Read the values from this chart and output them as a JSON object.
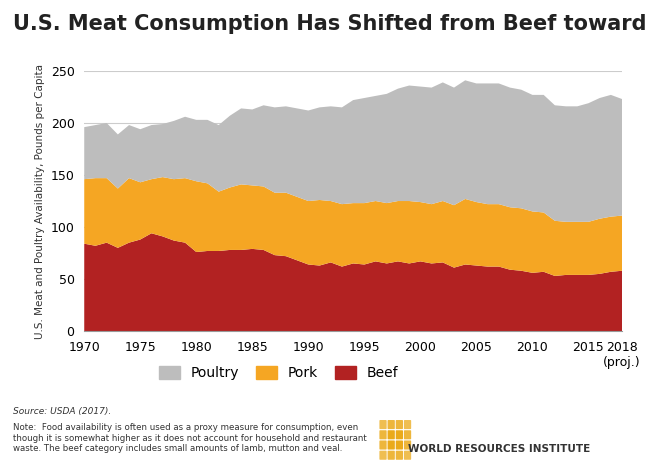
{
  "title": "U.S. Meat Consumption Has Shifted from Beef toward Chicken",
  "ylabel": "U.S. Meat and Poultry Availability, Pounds per Capita",
  "source_text": "Source: USDA (2017).",
  "note_text": "Note:  Food availability is often used as a proxy measure for consumption, even\nthough it is somewhat higher as it does not account for household and restaurant\nwaste. The beef category includes small amounts of lamb, mutton and veal.",
  "wri_text": "WORLD RESOURCES INSTITUTE",
  "years": [
    1970,
    1971,
    1972,
    1973,
    1974,
    1975,
    1976,
    1977,
    1978,
    1979,
    1980,
    1981,
    1982,
    1983,
    1984,
    1985,
    1986,
    1987,
    1988,
    1989,
    1990,
    1991,
    1992,
    1993,
    1994,
    1995,
    1996,
    1997,
    1998,
    1999,
    2000,
    2001,
    2002,
    2003,
    2004,
    2005,
    2006,
    2007,
    2008,
    2009,
    2010,
    2011,
    2012,
    2013,
    2014,
    2015,
    2016,
    2017,
    2018
  ],
  "beef": [
    84,
    82,
    85,
    80,
    85,
    88,
    94,
    91,
    87,
    85,
    76,
    77,
    77,
    78,
    78,
    79,
    78,
    73,
    72,
    68,
    64,
    63,
    66,
    62,
    65,
    64,
    67,
    65,
    67,
    65,
    67,
    65,
    66,
    61,
    64,
    63,
    62,
    62,
    59,
    58,
    56,
    57,
    53,
    54,
    54,
    54,
    55,
    57,
    58
  ],
  "pork": [
    62,
    65,
    62,
    57,
    62,
    55,
    52,
    57,
    59,
    62,
    68,
    65,
    57,
    60,
    63,
    61,
    61,
    60,
    61,
    61,
    61,
    63,
    59,
    60,
    58,
    59,
    58,
    58,
    58,
    60,
    57,
    57,
    59,
    60,
    63,
    61,
    60,
    60,
    60,
    60,
    59,
    57,
    53,
    51,
    51,
    51,
    53,
    53,
    53
  ],
  "poultry": [
    50,
    51,
    53,
    52,
    51,
    51,
    52,
    51,
    56,
    59,
    59,
    61,
    64,
    69,
    73,
    73,
    78,
    82,
    83,
    85,
    87,
    89,
    91,
    93,
    99,
    101,
    101,
    105,
    108,
    111,
    111,
    112,
    114,
    113,
    114,
    114,
    116,
    116,
    115,
    114,
    112,
    113,
    111,
    111,
    111,
    114,
    116,
    117,
    112
  ],
  "beef_color": "#b22222",
  "pork_color": "#f5a623",
  "poultry_color": "#bdbdbd",
  "background_color": "#ffffff",
  "ylim": [
    0,
    250
  ],
  "yticks": [
    0,
    50,
    100,
    150,
    200,
    250
  ],
  "title_fontsize": 15,
  "axis_fontsize": 9,
  "legend_fontsize": 10,
  "gold_color": "#e8a000"
}
